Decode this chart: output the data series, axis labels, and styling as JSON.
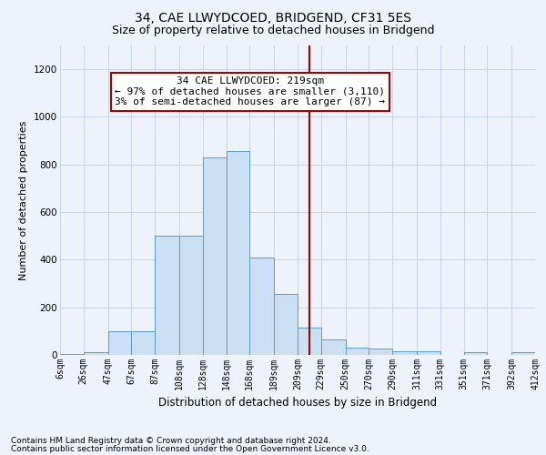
{
  "title": "34, CAE LLWYDCOED, BRIDGEND, CF31 5ES",
  "subtitle": "Size of property relative to detached houses in Bridgend",
  "xlabel": "Distribution of detached houses by size in Bridgend",
  "ylabel": "Number of detached properties",
  "footnote1": "Contains HM Land Registry data © Crown copyright and database right 2024.",
  "footnote2": "Contains public sector information licensed under the Open Government Licence v3.0.",
  "annotation_line1": "34 CAE LLWYDCOED: 219sqm",
  "annotation_line2": "← 97% of detached houses are smaller (3,110)",
  "annotation_line3": "3% of semi-detached houses are larger (87) →",
  "bar_values": [
    5,
    10,
    100,
    100,
    500,
    500,
    830,
    855,
    410,
    255,
    115,
    65,
    30,
    25,
    15,
    15,
    0,
    10,
    0,
    10
  ],
  "bin_edges": [
    6,
    26,
    47,
    67,
    87,
    108,
    128,
    148,
    168,
    189,
    209,
    229,
    250,
    270,
    290,
    311,
    331,
    351,
    371,
    392,
    412
  ],
  "tick_labels": [
    "6sqm",
    "26sqm",
    "47sqm",
    "67sqm",
    "87sqm",
    "108sqm",
    "128sqm",
    "148sqm",
    "168sqm",
    "189sqm",
    "209sqm",
    "229sqm",
    "250sqm",
    "270sqm",
    "290sqm",
    "311sqm",
    "331sqm",
    "351sqm",
    "371sqm",
    "392sqm",
    "412sqm"
  ],
  "vline_x": 219,
  "bar_facecolor": "#cce0f5",
  "bar_edgecolor": "#5b9bd5",
  "vline_color": "#aa0000",
  "annotation_box_edgecolor": "#aa0000",
  "annotation_box_facecolor": "white",
  "grid_color": "#c8d4e8",
  "background_color": "#eef2fa",
  "ylim": [
    0,
    1300
  ],
  "title_fontsize": 10,
  "subtitle_fontsize": 9,
  "axis_label_fontsize": 8,
  "tick_fontsize": 7,
  "annotation_fontsize": 8,
  "footnote_fontsize": 6.5
}
